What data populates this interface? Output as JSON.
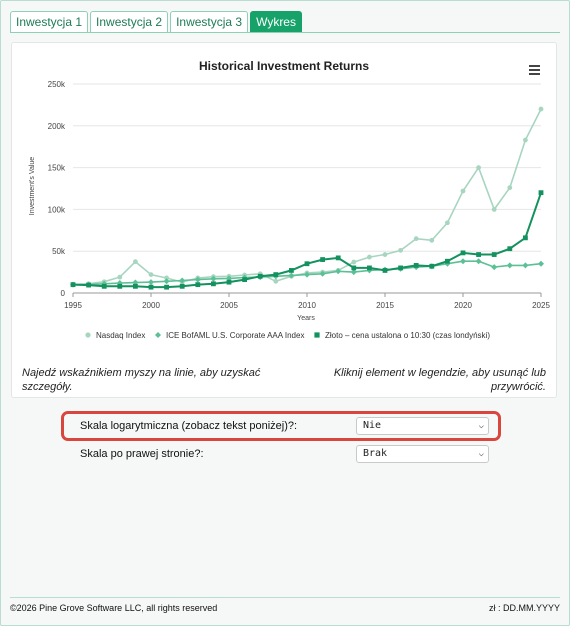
{
  "tabs": [
    {
      "label": "Inwestycja 1",
      "active": false
    },
    {
      "label": "Inwestycja 2",
      "active": false
    },
    {
      "label": "Inwestycja 3",
      "active": false
    },
    {
      "label": "Wykres",
      "active": true
    }
  ],
  "menu_icon": "hamburger-menu-icon",
  "chart_data": {
    "type": "line",
    "title": "Historical Investment Returns",
    "xlabel": "Years",
    "ylabel": "Investment's Value",
    "xlim": [
      1995,
      2025
    ],
    "ylim": [
      0,
      250000
    ],
    "x_ticks": [
      "1995",
      "2000",
      "2005",
      "2010",
      "2015",
      "2020",
      "2025"
    ],
    "y_ticks": [
      "0",
      "50k",
      "100k",
      "150k",
      "200k",
      "250k"
    ],
    "grid": true,
    "legend_position": "bottom",
    "x": [
      1995,
      1996,
      1997,
      1998,
      1999,
      2000,
      2001,
      2002,
      2003,
      2004,
      2005,
      2006,
      2007,
      2008,
      2009,
      2010,
      2011,
      2012,
      2013,
      2014,
      2015,
      2016,
      2017,
      2018,
      2019,
      2020,
      2021,
      2022,
      2023,
      2024,
      2025
    ],
    "series": [
      {
        "name": "Nasdaq Index",
        "color": "#a8d5c0",
        "marker": "circle",
        "values": [
          10000,
          11000,
          13500,
          19000,
          37500,
          22000,
          18000,
          13000,
          18000,
          19500,
          20000,
          21500,
          23000,
          14000,
          20000,
          24000,
          25000,
          27000,
          37000,
          43000,
          46000,
          51000,
          65000,
          63000,
          84000,
          122000,
          150000,
          100000,
          126000,
          183000,
          220000
        ]
      },
      {
        "name": "ICE BofAML U.S. Corporate AAA Index",
        "color": "#5cc097",
        "marker": "diamond",
        "values": [
          10000,
          10000,
          11000,
          12000,
          12500,
          13000,
          14000,
          15000,
          16000,
          17000,
          17500,
          18500,
          19000,
          20000,
          21000,
          22000,
          23000,
          26000,
          25000,
          27000,
          28000,
          29000,
          31000,
          32000,
          35000,
          38000,
          38000,
          31000,
          33000,
          33000,
          35000
        ]
      },
      {
        "name": "Złoto – cena ustalona o 10:30 (czas londyński)",
        "color": "#13915e",
        "marker": "square",
        "values": [
          10000,
          9500,
          8000,
          8000,
          8000,
          7000,
          7000,
          8000,
          10000,
          11000,
          13000,
          16000,
          20000,
          22000,
          27000,
          35000,
          40000,
          42000,
          30000,
          30000,
          27000,
          30000,
          33000,
          32000,
          38000,
          48000,
          46000,
          46000,
          53000,
          66000,
          120000
        ]
      }
    ]
  },
  "hints": {
    "left": "Najedź wskaźnikiem myszy na linie, aby uzyskać szczegóły.",
    "right": "Kliknij element w legendzie, aby usunąć lub przywrócić."
  },
  "settings": {
    "log_scale": {
      "label": "Skala logarytmiczna (zobacz tekst poniżej)?:",
      "value": "Nie"
    },
    "right_axis": {
      "label": "Skala po prawej stronie?:",
      "value": "Brak"
    }
  },
  "footer": {
    "copyright": "©2026 Pine Grove Software LLC, all rights reserved",
    "date": "zł : DD.MM.YYYY"
  }
}
